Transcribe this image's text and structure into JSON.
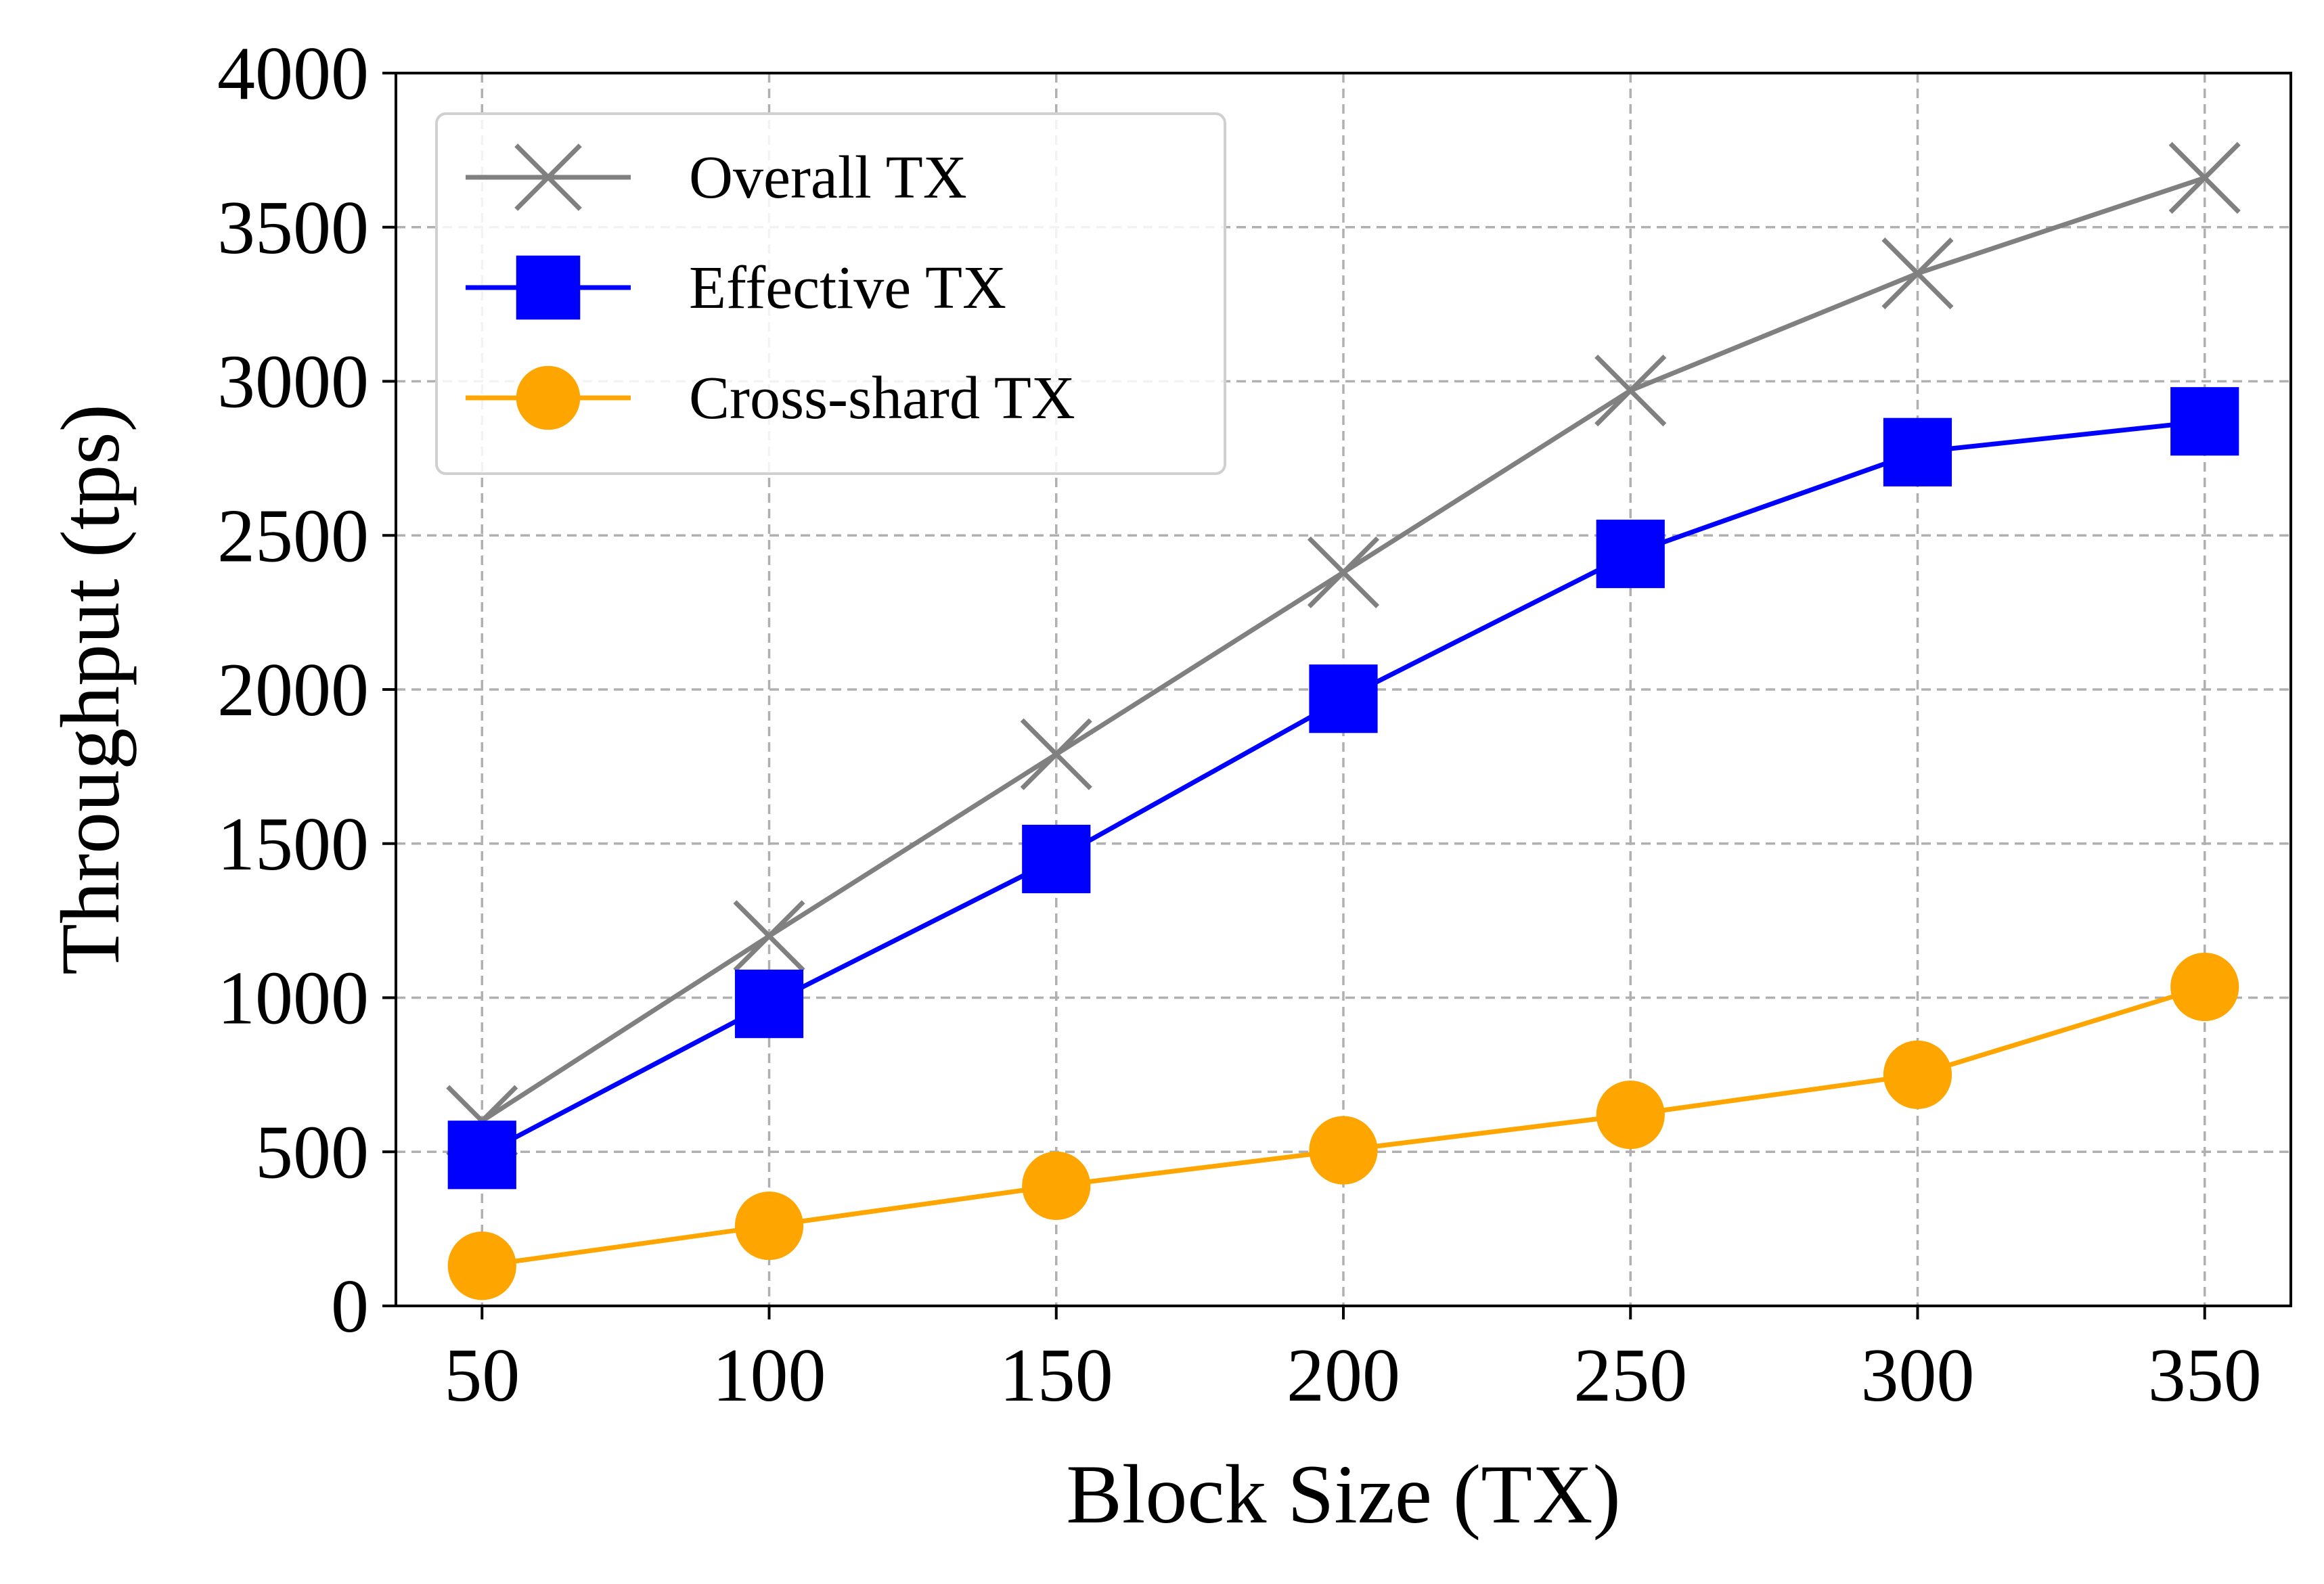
{
  "chart_data": {
    "type": "line",
    "title": "",
    "xlabel": "Block Size (TX)",
    "ylabel": "Throughput (tps)",
    "x": [
      50,
      100,
      150,
      200,
      250,
      300,
      350
    ],
    "xticks": [
      "50",
      "100",
      "150",
      "200",
      "250",
      "300",
      "350"
    ],
    "xlim": [
      35,
      365
    ],
    "ylim": [
      0,
      4000
    ],
    "yticks": [
      "0",
      "500",
      "1000",
      "1500",
      "2000",
      "2500",
      "3000",
      "3500",
      "4000"
    ],
    "grid": true,
    "legend_position": "top-left",
    "series": [
      {
        "name": "Overall TX",
        "color": "#808080",
        "marker": "x",
        "values": [
          600,
          1200,
          1790,
          2380,
          2970,
          3350,
          3660
        ]
      },
      {
        "name": "Effective TX",
        "color": "#0000ff",
        "marker": "square",
        "values": [
          490,
          980,
          1450,
          1970,
          2440,
          2770,
          2870
        ]
      },
      {
        "name": "Cross-shard TX",
        "color": "#ffa500",
        "marker": "circle",
        "values": [
          130,
          260,
          390,
          505,
          620,
          750,
          1035
        ]
      }
    ]
  }
}
